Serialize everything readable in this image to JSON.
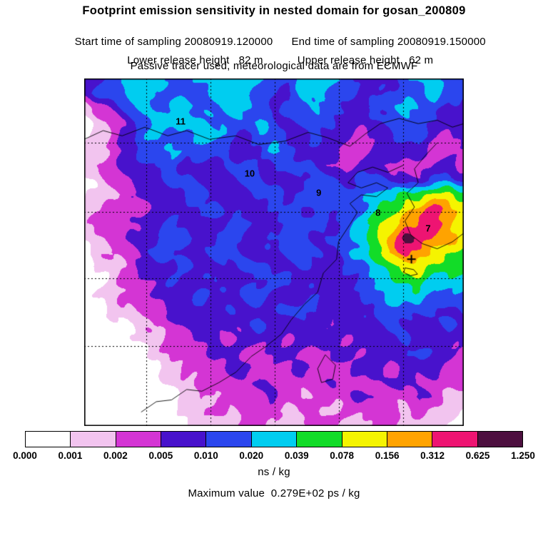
{
  "header": {
    "title": "Footprint emission sensitivity in nested domain for gosan_200809",
    "start_time": "Start time of sampling 20080919.120000",
    "end_time": "End time of sampling 20080919.150000",
    "lower_release": "Lower release height   82 m",
    "upper_release": "Upper release height   62 m",
    "tracer_note": "Passive tracer used, meteorological data are from ECMWF"
  },
  "chart_data": {
    "type": "heatmap",
    "title": "Footprint emission sensitivity in nested domain for gosan_200809",
    "units": "ns / kg",
    "max_value_text": "Maximum value  0.279E+02 ps / kg",
    "max_value": "0.279E+02",
    "max_value_units": "ps / kg",
    "colorbar": {
      "tick_labels": [
        "0.000",
        "0.001",
        "0.002",
        "0.005",
        "0.010",
        "0.020",
        "0.039",
        "0.078",
        "0.156",
        "0.312",
        "0.625",
        "1.250"
      ],
      "colors": [
        "#ffffff",
        "#f2c4ef",
        "#d435d4",
        "#4812cc",
        "#2b46ee",
        "#00cdf0",
        "#12dc28",
        "#f5f400",
        "#ffa300",
        "#ee1472",
        "#4d0f3f"
      ]
    },
    "grid_labels": [
      {
        "text": "11",
        "x": 0.254,
        "y": 0.123
      },
      {
        "text": "10",
        "x": 0.436,
        "y": 0.273
      },
      {
        "text": "9",
        "x": 0.618,
        "y": 0.329
      },
      {
        "text": "8",
        "x": 0.774,
        "y": 0.386
      },
      {
        "text": "7",
        "x": 0.906,
        "y": 0.431
      }
    ],
    "receptor_marker": {
      "symbol": "+",
      "x": 0.862,
      "y": 0.52
    },
    "gridlines": {
      "x": [
        0.163,
        0.333,
        0.502,
        0.671,
        0.84
      ],
      "y": [
        0.185,
        0.384,
        0.575,
        0.77
      ]
    },
    "field": {
      "comment_levels": "band index 0..10 maps to colorbar intervals",
      "cols": 27,
      "rows": 25,
      "levels": [
        [
          3,
          3,
          4,
          5,
          5,
          5,
          4,
          4,
          5,
          5,
          5,
          5,
          5,
          4,
          4,
          5,
          5,
          5,
          4,
          3,
          3,
          3,
          4,
          5,
          5,
          4,
          4
        ],
        [
          3,
          4,
          4,
          5,
          5,
          4,
          4,
          4,
          4,
          5,
          5,
          5,
          4,
          4,
          3,
          5,
          5,
          4,
          4,
          3,
          3,
          4,
          4,
          4,
          5,
          4,
          4
        ],
        [
          1,
          2,
          3,
          4,
          5,
          4,
          5,
          5,
          4,
          4,
          5,
          5,
          4,
          3,
          4,
          4,
          5,
          4,
          3,
          3,
          4,
          4,
          5,
          4,
          4,
          3,
          3
        ],
        [
          0,
          1,
          2,
          3,
          4,
          5,
          5,
          5,
          5,
          4,
          4,
          4,
          5,
          4,
          3,
          4,
          4,
          4,
          3,
          3,
          3,
          4,
          4,
          4,
          3,
          3,
          3
        ],
        [
          0,
          1,
          2,
          3,
          4,
          5,
          4,
          4,
          5,
          5,
          4,
          3,
          4,
          4,
          3,
          3,
          4,
          3,
          3,
          2,
          3,
          3,
          4,
          4,
          3,
          2,
          3
        ],
        [
          1,
          1,
          2,
          3,
          4,
          4,
          5,
          4,
          4,
          4,
          3,
          3,
          3,
          5,
          4,
          3,
          3,
          3,
          2,
          2,
          3,
          3,
          3,
          3,
          2,
          2,
          2
        ],
        [
          1,
          2,
          2,
          3,
          3,
          4,
          4,
          3,
          3,
          3,
          4,
          4,
          3,
          3,
          4,
          4,
          3,
          2,
          2,
          3,
          3,
          2,
          2,
          2,
          3,
          3,
          2
        ],
        [
          0,
          1,
          2,
          2,
          3,
          3,
          4,
          4,
          3,
          3,
          3,
          4,
          4,
          3,
          3,
          3,
          4,
          4,
          3,
          4,
          4,
          3,
          3,
          3,
          4,
          4,
          3
        ],
        [
          0,
          1,
          1,
          2,
          3,
          3,
          3,
          4,
          4,
          3,
          3,
          3,
          4,
          4,
          3,
          4,
          4,
          4,
          4,
          4,
          5,
          5,
          6,
          6,
          7,
          7,
          6
        ],
        [
          1,
          1,
          2,
          2,
          2,
          3,
          3,
          3,
          4,
          4,
          3,
          3,
          3,
          4,
          4,
          3,
          4,
          4,
          4,
          4,
          5,
          6,
          7,
          8,
          9,
          8,
          7
        ],
        [
          1,
          2,
          2,
          2,
          3,
          3,
          4,
          3,
          3,
          3,
          4,
          4,
          3,
          3,
          4,
          4,
          4,
          3,
          4,
          5,
          6,
          7,
          8,
          9,
          9,
          8,
          7
        ],
        [
          1,
          1,
          2,
          3,
          3,
          3,
          4,
          4,
          3,
          3,
          4,
          3,
          3,
          4,
          4,
          4,
          3,
          4,
          4,
          5,
          6,
          8,
          10,
          9,
          8,
          8,
          7
        ],
        [
          0,
          1,
          2,
          2,
          3,
          4,
          4,
          3,
          3,
          4,
          4,
          3,
          3,
          3,
          4,
          4,
          4,
          3,
          4,
          5,
          6,
          8,
          9,
          8,
          7,
          7,
          6
        ],
        [
          0,
          1,
          1,
          2,
          3,
          3,
          3,
          4,
          3,
          3,
          3,
          4,
          4,
          3,
          3,
          4,
          3,
          3,
          4,
          4,
          5,
          6,
          7,
          7,
          6,
          6,
          6
        ],
        [
          0,
          0,
          1,
          2,
          2,
          3,
          4,
          3,
          3,
          4,
          3,
          3,
          3,
          4,
          4,
          3,
          3,
          3,
          3,
          4,
          5,
          5,
          6,
          6,
          5,
          5,
          5
        ],
        [
          0,
          1,
          1,
          2,
          2,
          3,
          3,
          3,
          4,
          3,
          3,
          4,
          4,
          3,
          3,
          3,
          4,
          3,
          3,
          4,
          4,
          5,
          5,
          5,
          4,
          4,
          4
        ],
        [
          0,
          0,
          1,
          1,
          2,
          2,
          3,
          3,
          3,
          3,
          4,
          3,
          3,
          3,
          4,
          4,
          3,
          3,
          3,
          3,
          4,
          4,
          4,
          4,
          4,
          3,
          4
        ],
        [
          0,
          0,
          0,
          0,
          1,
          2,
          2,
          3,
          3,
          3,
          3,
          3,
          4,
          3,
          3,
          3,
          3,
          2,
          3,
          3,
          3,
          4,
          3,
          3,
          3,
          4,
          3
        ],
        [
          0,
          0,
          0,
          0,
          1,
          1,
          2,
          2,
          3,
          3,
          2,
          3,
          3,
          3,
          2,
          3,
          3,
          3,
          2,
          3,
          3,
          3,
          4,
          3,
          3,
          3,
          3
        ],
        [
          0,
          0,
          0,
          0,
          0,
          1,
          2,
          2,
          2,
          3,
          3,
          2,
          2,
          3,
          3,
          2,
          2,
          3,
          3,
          2,
          3,
          3,
          3,
          4,
          3,
          3,
          2
        ],
        [
          0,
          0,
          0,
          0,
          0,
          0,
          1,
          2,
          2,
          2,
          3,
          3,
          2,
          2,
          2,
          3,
          2,
          2,
          2,
          3,
          3,
          2,
          3,
          3,
          3,
          2,
          2
        ],
        [
          0,
          0,
          0,
          0,
          0,
          0,
          1,
          1,
          2,
          2,
          2,
          2,
          3,
          2,
          2,
          2,
          2,
          3,
          2,
          2,
          2,
          3,
          3,
          2,
          2,
          2,
          2
        ],
        [
          0,
          0,
          0,
          0,
          0,
          0,
          0,
          1,
          2,
          1,
          2,
          2,
          2,
          3,
          2,
          1,
          2,
          2,
          2,
          3,
          2,
          2,
          2,
          3,
          2,
          1,
          1
        ],
        [
          0,
          0,
          0,
          0,
          0,
          0,
          0,
          1,
          1,
          2,
          1,
          2,
          2,
          2,
          1,
          2,
          2,
          1,
          2,
          2,
          2,
          2,
          1,
          2,
          1,
          1,
          0
        ],
        [
          0,
          0,
          0,
          0,
          0,
          0,
          0,
          0,
          1,
          1,
          1,
          2,
          2,
          1,
          1,
          1,
          2,
          2,
          1,
          1,
          2,
          2,
          1,
          1,
          1,
          0,
          0
        ]
      ]
    },
    "coastlines": [
      [
        [
          0.0,
          0.175
        ],
        [
          0.05,
          0.15
        ],
        [
          0.1,
          0.165
        ],
        [
          0.16,
          0.14
        ],
        [
          0.22,
          0.165
        ],
        [
          0.27,
          0.15
        ],
        [
          0.33,
          0.175
        ],
        [
          0.4,
          0.165
        ],
        [
          0.46,
          0.19
        ],
        [
          0.53,
          0.18
        ],
        [
          0.59,
          0.155
        ],
        [
          0.64,
          0.17
        ],
        [
          0.7,
          0.195
        ]
      ],
      [
        [
          0.7,
          0.195
        ],
        [
          0.74,
          0.16
        ],
        [
          0.78,
          0.13
        ],
        [
          0.83,
          0.115
        ],
        [
          0.88,
          0.13
        ],
        [
          0.93,
          0.12
        ],
        [
          0.97,
          0.14
        ],
        [
          1.0,
          0.13
        ]
      ],
      [
        [
          0.93,
          0.185
        ],
        [
          0.9,
          0.22
        ],
        [
          0.87,
          0.26
        ],
        [
          0.88,
          0.3
        ],
        [
          0.85,
          0.33
        ],
        [
          0.87,
          0.37
        ],
        [
          0.845,
          0.41
        ],
        [
          0.86,
          0.45
        ],
        [
          0.89,
          0.475
        ],
        [
          0.93,
          0.49
        ],
        [
          0.97,
          0.47
        ],
        [
          1.0,
          0.445
        ]
      ],
      [
        [
          0.84,
          0.25
        ],
        [
          0.8,
          0.27
        ],
        [
          0.76,
          0.255
        ],
        [
          0.72,
          0.27
        ],
        [
          0.695,
          0.3
        ],
        [
          0.73,
          0.315
        ],
        [
          0.77,
          0.3
        ],
        [
          0.8,
          0.315
        ],
        [
          0.77,
          0.34
        ],
        [
          0.73,
          0.335
        ],
        [
          0.7,
          0.36
        ],
        [
          0.72,
          0.385
        ],
        [
          0.7,
          0.42
        ]
      ],
      [
        [
          0.7,
          0.42
        ],
        [
          0.67,
          0.47
        ],
        [
          0.665,
          0.52
        ],
        [
          0.63,
          0.56
        ],
        [
          0.615,
          0.615
        ],
        [
          0.58,
          0.65
        ],
        [
          0.545,
          0.695
        ],
        [
          0.52,
          0.735
        ],
        [
          0.48,
          0.77
        ],
        [
          0.44,
          0.8
        ],
        [
          0.4,
          0.845
        ],
        [
          0.355,
          0.875
        ],
        [
          0.31,
          0.9
        ],
        [
          0.27,
          0.895
        ],
        [
          0.23,
          0.925
        ],
        [
          0.19,
          0.93
        ],
        [
          0.15,
          0.96
        ]
      ],
      [
        [
          0.635,
          0.795
        ],
        [
          0.662,
          0.825
        ],
        [
          0.655,
          0.865
        ],
        [
          0.625,
          0.875
        ],
        [
          0.615,
          0.835
        ],
        [
          0.635,
          0.795
        ]
      ],
      [
        [
          0.845,
          0.545
        ],
        [
          0.868,
          0.55
        ],
        [
          0.878,
          0.563
        ],
        [
          0.858,
          0.568
        ],
        [
          0.842,
          0.558
        ],
        [
          0.845,
          0.545
        ]
      ]
    ]
  }
}
